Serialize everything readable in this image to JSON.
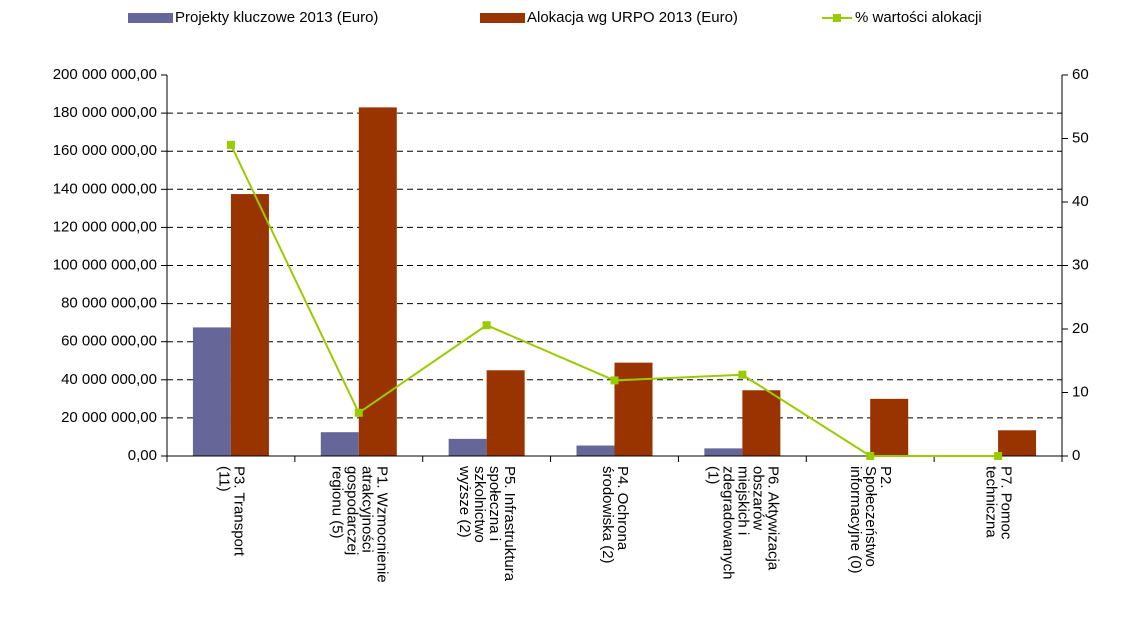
{
  "chart_data": {
    "type": "bar-line",
    "categories": [
      "P3. Transport\n(11)",
      "P1. Wzmocnienie\natrakcyjności\ngospodarczej\nregionu (5)",
      "P5. Infrastruktura\nspołeczna i\nszkolnictwo\nwyższe (2)",
      "P4. Ochrona\nśrodowiska (2)",
      "P6. Aktywizacja\nobszarów\nmiejskich i\nzdegradowanych\n(1)",
      "P2.\nSpołeczeństwo\ninformacyjne (0)",
      "P7. Pomoc\ntechniczna"
    ],
    "series": [
      {
        "name": "Projekty kluczowe 2013 (Euro)",
        "color": "#666699",
        "kind": "bar",
        "values": [
          67500000,
          12500000,
          9000000,
          5500000,
          4000000,
          0,
          0
        ]
      },
      {
        "name": "Alokacja wg URPO 2013 (Euro)",
        "color": "#993300",
        "kind": "bar",
        "values": [
          137500000,
          183000000,
          45000000,
          49000000,
          34500000,
          30000000,
          13500000
        ]
      },
      {
        "name": "% wartości alokacji",
        "color": "#99cc00",
        "kind": "line",
        "axis": "y2",
        "values": [
          49,
          6.8,
          20.6,
          11.9,
          12.8,
          0,
          0
        ]
      }
    ],
    "ylim": [
      0,
      200000000
    ],
    "yticks": [
      {
        "value": 0,
        "label": "0,00"
      },
      {
        "value": 20000000,
        "label": "20 000 000,00"
      },
      {
        "value": 40000000,
        "label": "40 000 000,00"
      },
      {
        "value": 60000000,
        "label": "60 000 000,00"
      },
      {
        "value": 80000000,
        "label": "80 000 000,00"
      },
      {
        "value": 100000000,
        "label": "100 000 000,00"
      },
      {
        "value": 120000000,
        "label": "120 000 000,00"
      },
      {
        "value": 140000000,
        "label": "140 000 000,00"
      },
      {
        "value": 160000000,
        "label": "160 000 000,00"
      },
      {
        "value": 180000000,
        "label": "180 000 000,00"
      },
      {
        "value": 200000000,
        "label": "200 000 000,00"
      }
    ],
    "y2lim": [
      0,
      60
    ],
    "y2ticks": [
      0,
      10,
      20,
      30,
      40,
      50,
      60
    ],
    "grid": true,
    "legend": "top"
  }
}
